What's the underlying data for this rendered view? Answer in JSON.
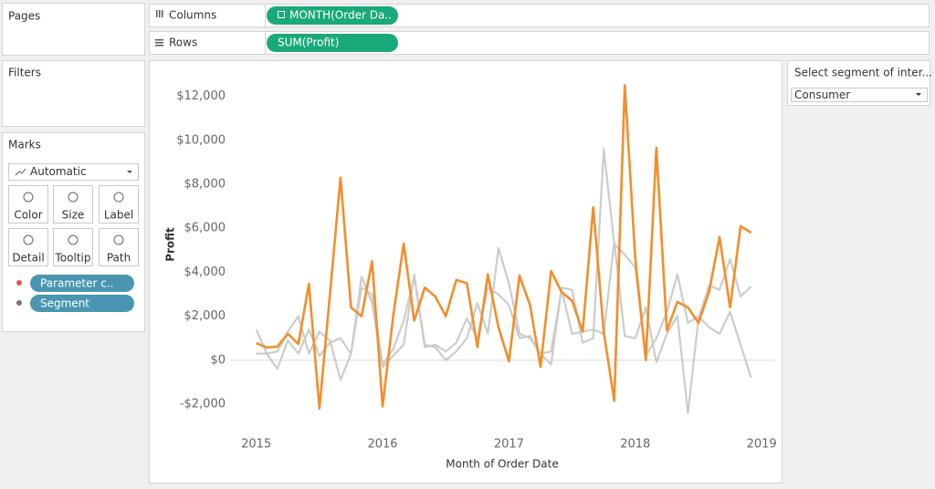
{
  "shelves": {
    "pages": "Pages",
    "columns": {
      "label": "Columns",
      "pill": "MONTH(Order Da.."
    },
    "rows": {
      "label": "Rows",
      "pill": "SUM(Profit)"
    }
  },
  "filters": "Filters",
  "marks": {
    "title": "Marks",
    "mark_type": "Automatic",
    "buttons": [
      "Color",
      "Size",
      "Label",
      "Detail",
      "Tooltip",
      "Path"
    ],
    "pills": [
      "Parameter c..",
      "Segment"
    ]
  },
  "parameter": {
    "title": "Select segment of inter...",
    "value": "Consumer"
  },
  "chart_data": {
    "type": "line",
    "y_label": "Profit",
    "x_label": "Month of Order Date",
    "x": [
      2015,
      2015.0833,
      2015.1667,
      2015.25,
      2015.3333,
      2015.4167,
      2015.5,
      2015.5833,
      2015.6667,
      2015.75,
      2015.8333,
      2015.9167,
      2016,
      2016.0833,
      2016.1667,
      2016.25,
      2016.3333,
      2016.4167,
      2016.5,
      2016.5833,
      2016.6667,
      2016.75,
      2016.8333,
      2016.9167,
      2017,
      2017.0833,
      2017.1667,
      2017.25,
      2017.3333,
      2017.4167,
      2017.5,
      2017.5833,
      2017.6667,
      2017.75,
      2017.8333,
      2017.9167,
      2018,
      2018.0833,
      2018.1667,
      2018.25,
      2018.3333,
      2018.4167,
      2018.5,
      2018.5833,
      2018.6667,
      2018.75,
      2018.8333,
      2018.9167
    ],
    "series": [
      {
        "color": "#cccccc",
        "values": [
          1400,
          300,
          -400,
          900,
          300,
          1400,
          200,
          800,
          1000,
          300,
          3800,
          2600,
          -300,
          200,
          700,
          3900,
          700,
          600,
          0,
          400,
          1000,
          2600,
          1200,
          5100,
          3500,
          1200,
          1000,
          300,
          -200,
          3300,
          3200,
          800,
          1000,
          9600,
          5300,
          4800,
          4200,
          200,
          1000,
          2200,
          3900,
          1700,
          2000,
          1500,
          1200,
          2200,
          700,
          -800
        ]
      },
      {
        "color": "#cccccc",
        "values": [
          300,
          300,
          400,
          1300,
          2000,
          300,
          1300,
          900,
          -900,
          300,
          3300,
          3000,
          -200,
          500,
          1800,
          3800,
          600,
          700,
          400,
          800,
          1900,
          1000,
          3300,
          3000,
          2500,
          1000,
          1100,
          300,
          400,
          3200,
          1200,
          1300,
          1400,
          1200,
          5400,
          1100,
          1000,
          2400,
          -100,
          1200,
          2000,
          -2400,
          1900,
          3400,
          3200,
          4600,
          2900,
          3350
        ]
      },
      {
        "color": "#f28e2b",
        "values": [
          780,
          580,
          620,
          1200,
          740,
          3470,
          -2190,
          3000,
          8300,
          2400,
          2000,
          4500,
          -2100,
          2000,
          5300,
          1800,
          3300,
          2900,
          2000,
          3650,
          3500,
          600,
          3900,
          1500,
          -50,
          3850,
          2500,
          -300,
          4050,
          3100,
          2700,
          1300,
          6950,
          1300,
          -1850,
          12500,
          4600,
          0,
          9650,
          1350,
          2650,
          2400,
          1700,
          3100,
          5600,
          2400,
          6100,
          5800
        ]
      }
    ],
    "xlim": [
      2014.8,
      2019.1
    ],
    "xticks": [
      2015,
      2016,
      2017,
      2018,
      2019
    ],
    "ylim": [
      -3200,
      13600
    ],
    "yticks": [
      {
        "value": -2000,
        "label": "-$2,000"
      },
      {
        "value": 0,
        "label": "$0"
      },
      {
        "value": 2000,
        "label": "$2,000"
      },
      {
        "value": 4000,
        "label": "$4,000"
      },
      {
        "value": 6000,
        "label": "$6,000"
      },
      {
        "value": 8000,
        "label": "$8,000"
      },
      {
        "value": 10000,
        "label": "$10,000"
      },
      {
        "value": 12000,
        "label": "$12,000"
      }
    ],
    "grid": false,
    "zero_line": true
  }
}
